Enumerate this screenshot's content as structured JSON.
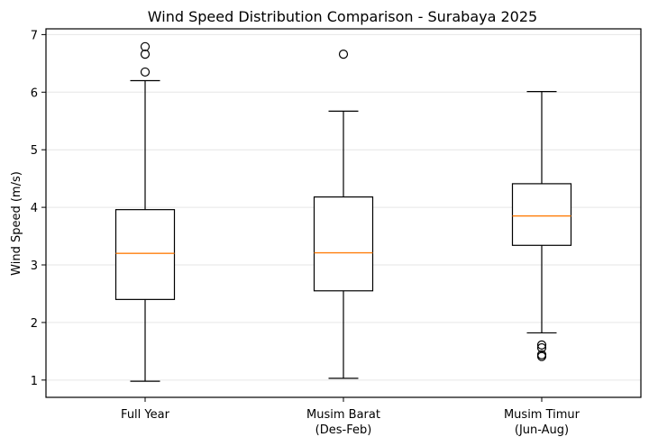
{
  "chart_data": {
    "type": "box",
    "title": "Wind Speed Distribution Comparison - Surabaya 2025",
    "xlabel": "",
    "ylabel": "Wind Speed (m/s)",
    "ylim": [
      0.7,
      7.1
    ],
    "yticks": [
      1,
      2,
      3,
      4,
      5,
      6,
      7
    ],
    "grid": "horizontal",
    "colors": {
      "box": "#000000",
      "median": "#ff7f0e",
      "grid": "#e6e6e6"
    },
    "categories": [
      {
        "label_lines": [
          "Full Year"
        ]
      },
      {
        "label_lines": [
          "Musim Barat",
          "(Des-Feb)"
        ]
      },
      {
        "label_lines": [
          "Musim Timur",
          "(Jun-Aug)"
        ]
      }
    ],
    "series": [
      {
        "whisker_low": 0.98,
        "q1": 2.4,
        "median": 3.2,
        "q3": 3.96,
        "whisker_high": 6.2,
        "outliers": [
          6.35,
          6.66,
          6.79
        ]
      },
      {
        "whisker_low": 1.03,
        "q1": 2.55,
        "median": 3.21,
        "q3": 4.18,
        "whisker_high": 5.67,
        "outliers": [
          6.66
        ]
      },
      {
        "whisker_low": 1.82,
        "q1": 3.34,
        "median": 3.85,
        "q3": 4.41,
        "whisker_high": 6.01,
        "outliers": [
          1.41,
          1.44,
          1.56,
          1.61
        ]
      }
    ]
  }
}
